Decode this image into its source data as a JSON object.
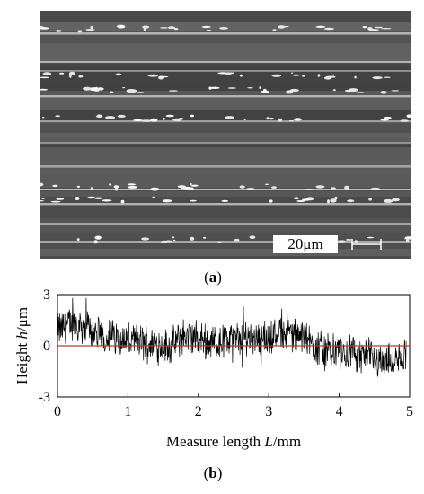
{
  "panel_a": {
    "caption_open": "(",
    "caption_letter": "a",
    "caption_close": ")",
    "scale_bar_label": "20μm"
  },
  "panel_b": {
    "caption_open": "(",
    "caption_letter": "b",
    "caption_close": ")"
  },
  "chart_data": {
    "type": "line",
    "xlabel_text": "Measure length ",
    "xlabel_var": "L",
    "xlabel_unit": "/mm",
    "ylabel_text": "Height ",
    "ylabel_var": "h",
    "ylabel_unit": "/μm",
    "xlim": [
      0,
      5
    ],
    "ylim": [
      -3,
      3
    ],
    "xticks": [
      "0",
      "1",
      "2",
      "3",
      "4",
      "5"
    ],
    "yticks": [
      "3",
      "0",
      "-3"
    ],
    "grid": false,
    "reference_line": {
      "y": 0,
      "color": "#c0392b"
    },
    "series_color": "#000000",
    "series": [
      {
        "x_start": 0,
        "x_end": 4.95,
        "y_envelope_points": [
          [
            0.0,
            0.9
          ],
          [
            0.2,
            1.3
          ],
          [
            0.4,
            1.2
          ],
          [
            0.6,
            0.5
          ],
          [
            0.8,
            0.6
          ],
          [
            1.0,
            0.3
          ],
          [
            1.2,
            0.2
          ],
          [
            1.4,
            0.1
          ],
          [
            1.6,
            -0.1
          ],
          [
            1.8,
            0.6
          ],
          [
            2.0,
            0.4
          ],
          [
            2.2,
            0.2
          ],
          [
            2.4,
            0.3
          ],
          [
            2.6,
            0.4
          ],
          [
            2.8,
            0.6
          ],
          [
            3.0,
            0.4
          ],
          [
            3.2,
            0.9
          ],
          [
            3.4,
            0.6
          ],
          [
            3.6,
            0.2
          ],
          [
            3.8,
            -0.3
          ],
          [
            4.0,
            -0.4
          ],
          [
            4.2,
            -0.5
          ],
          [
            4.4,
            -0.6
          ],
          [
            4.6,
            -0.9
          ],
          [
            4.8,
            -1.0
          ],
          [
            4.95,
            -0.6
          ]
        ],
        "noise_amplitude": 0.9,
        "n_points": 900
      }
    ]
  }
}
